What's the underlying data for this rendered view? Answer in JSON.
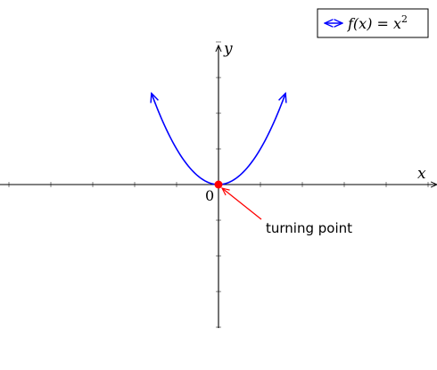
{
  "chart_data": {
    "type": "line",
    "title": "",
    "xlabel": "x",
    "ylabel": "y",
    "origin_label": "0",
    "xlim": [
      -5,
      5
    ],
    "ylim": [
      -4,
      4
    ],
    "grid": false,
    "legend_position": "top-right",
    "series": [
      {
        "name": "f(x) = x²",
        "function": "x^2",
        "domain": [
          -1.6,
          1.6
        ],
        "color": "#0000ff",
        "x": [
          -1.6,
          -1.2,
          -0.8,
          -0.4,
          0,
          0.4,
          0.8,
          1.2,
          1.6
        ],
        "y": [
          2.56,
          1.44,
          0.64,
          0.16,
          0,
          0.16,
          0.64,
          1.44,
          2.56
        ]
      }
    ],
    "annotations": [
      {
        "text": "turning point",
        "x": 0,
        "y": 0,
        "color": "#ff0000"
      }
    ]
  },
  "colors": {
    "curve": "#0000ff",
    "marker": "#ff0000",
    "axis": "#000000"
  },
  "legend": {
    "prefix": "f(x) = x",
    "superscript": "2"
  }
}
